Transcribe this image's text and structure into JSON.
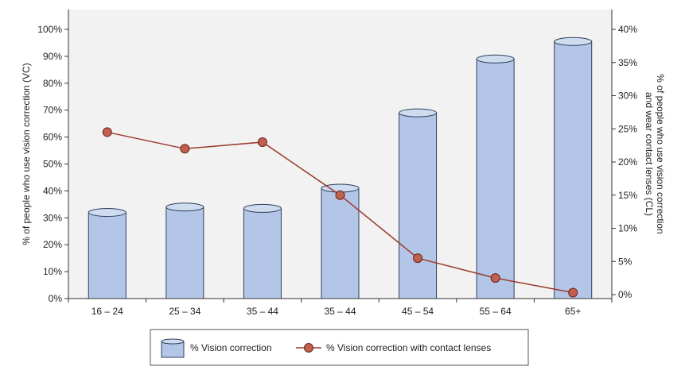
{
  "chart_data": {
    "type": "bar+line",
    "categories": [
      "16 – 24",
      "25 – 34",
      "35 – 44",
      "35 – 44",
      "45 – 54",
      "55 – 64",
      "65+"
    ],
    "series": [
      {
        "name": "% Vision correction",
        "type": "bar",
        "axis": "left",
        "values": [
          32,
          34,
          33.5,
          41,
          69,
          89,
          95.5
        ]
      },
      {
        "name": "%  Vision correction with contact lenses",
        "type": "line",
        "axis": "right",
        "values": [
          24.5,
          22,
          23,
          15,
          5.5,
          2.5,
          0.3
        ]
      }
    ],
    "y_left": {
      "label": "% of people who use vision correction (VC)",
      "ylim": [
        0,
        100
      ],
      "ticks": [
        "0%",
        "10%",
        "20%",
        "30%",
        "40%",
        "50%",
        "60%",
        "70%",
        "80%",
        "90%",
        "100%"
      ]
    },
    "y_right": {
      "label_line1": "% of people who use vision correction",
      "label_line2": "and wear contact lenses (CL)",
      "ylim": [
        0,
        40
      ],
      "ticks": [
        "0%",
        "5%",
        "10%",
        "15%",
        "20%",
        "25%",
        "30%",
        "35%",
        "40%"
      ]
    },
    "legend": {
      "placement": "bottom-center",
      "bar_label": "% Vision correction",
      "line_label": "%  Vision correction with contact lenses"
    },
    "colors": {
      "bar_fill": "#b4c6e7",
      "bar_stroke": "#2e3e5c",
      "line": "#9b3a2c",
      "marker": "#c0604e",
      "plot_bg": "#f2f2f2"
    },
    "grid": false
  }
}
